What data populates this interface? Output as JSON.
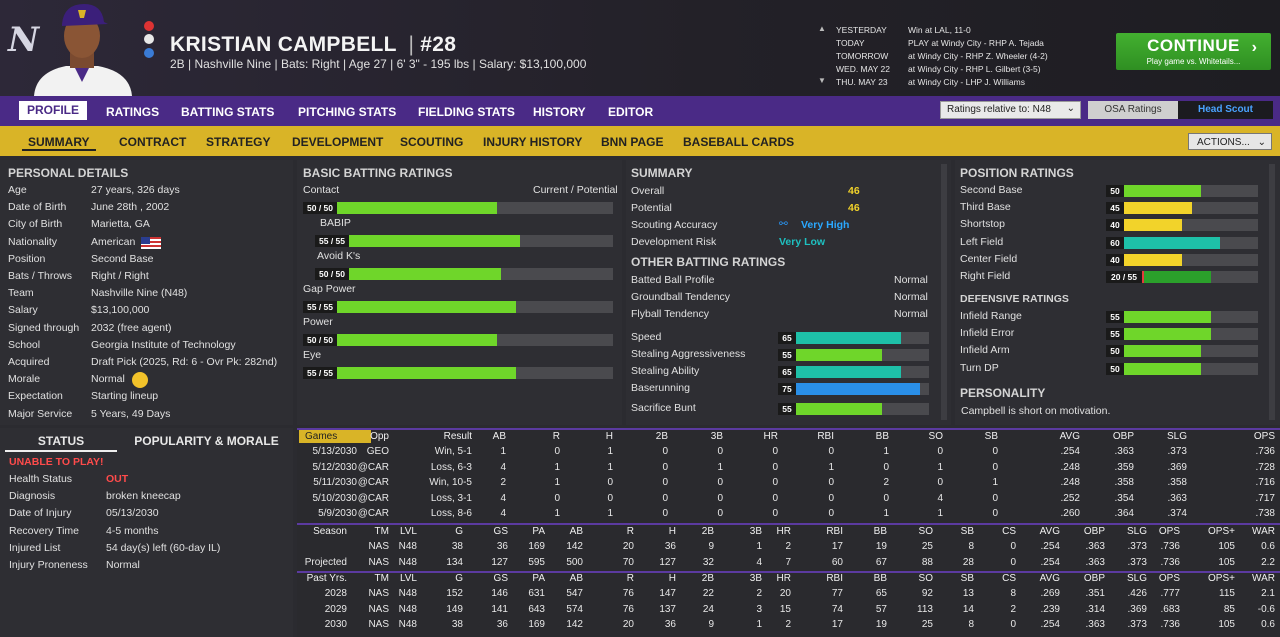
{
  "header": {
    "logo": "N",
    "name": "KRISTIAN CAMPBELL",
    "number_sep": "|",
    "number": "#28",
    "info": "2B | Nashville Nine | Bats: Right | Age 27 | 6' 3\" - 195 lbs | Salary: $13,100,000"
  },
  "schedule": [
    {
      "day": "YESTERDAY",
      "text": "Win at LAL, 11-0"
    },
    {
      "day": "TODAY",
      "text": "PLAY at Windy City - RHP A. Tejada"
    },
    {
      "day": "TOMORROW",
      "text": "at Windy City - RHP Z. Wheeler (4-2)"
    },
    {
      "day": "WED. MAY 22",
      "text": "at Windy City - RHP L. Gilbert (3-5)"
    },
    {
      "day": "THU. MAY 23",
      "text": "at Windy City - LHP J. Williams"
    }
  ],
  "continue": {
    "label": "CONTINUE",
    "sub": "Play game vs. Whitetails..."
  },
  "nav1": [
    "PROFILE",
    "RATINGS",
    "BATTING STATS",
    "PITCHING STATS",
    "FIELDING STATS",
    "HISTORY",
    "EDITOR"
  ],
  "ratings_select": "Ratings relative to: N48",
  "osa": "OSA Ratings",
  "head_scout": "Head Scout",
  "nav2": [
    "SUMMARY",
    "CONTRACT",
    "STRATEGY",
    "DEVELOPMENT",
    "SCOUTING",
    "INJURY HISTORY",
    "BNN PAGE",
    "BASEBALL CARDS"
  ],
  "actions": "ACTIONS...",
  "personal": {
    "title": "PERSONAL DETAILS",
    "rows": [
      [
        "Age",
        "27 years, 326 days"
      ],
      [
        "Date of Birth",
        "June 28th , 2002"
      ],
      [
        "City of Birth",
        "Marietta, GA"
      ],
      [
        "Nationality",
        "American"
      ],
      [
        "Position",
        "Second Base"
      ],
      [
        "Bats / Throws",
        "Right / Right"
      ],
      [
        "Team",
        "Nashville Nine (N48)"
      ],
      [
        "Salary",
        "$13,100,000"
      ],
      [
        "Signed through",
        "2032 (free agent)"
      ],
      [
        "School",
        "Georgia Institute of Technology"
      ],
      [
        "Acquired",
        "Draft Pick (2025, Rd: 6 - Ovr Pk: 282nd)"
      ],
      [
        "Morale",
        "Normal"
      ],
      [
        "Expectation",
        "Starting lineup"
      ],
      [
        "Major Service",
        "5 Years, 49 Days"
      ]
    ]
  },
  "status": {
    "tab1": "STATUS",
    "tab2": "POPULARITY & MORALE",
    "alert": "UNABLE TO PLAY!",
    "rows": [
      [
        "Health Status",
        "OUT"
      ],
      [
        "Diagnosis",
        "broken kneecap"
      ],
      [
        "Date of Injury",
        "05/13/2030"
      ],
      [
        "Recovery Time",
        "4-5 months"
      ],
      [
        "Injured List",
        "54 day(s) left (60-day IL)"
      ],
      [
        "Injury Proneness",
        "Normal"
      ]
    ]
  },
  "batting": {
    "title": "BASIC BATTING RATINGS",
    "cur_pot": "Current / Potential",
    "items": [
      {
        "name": "Contact",
        "label": "50 / 50",
        "cur": 50
      },
      {
        "name": "BABIP",
        "label": "55 / 55",
        "cur": 55
      },
      {
        "name": "Avoid K's",
        "label": "50 / 50",
        "cur": 50
      },
      {
        "name": "Gap Power",
        "label": "55 / 55",
        "cur": 55
      },
      {
        "name": "Power",
        "label": "50 / 50",
        "cur": 50
      },
      {
        "name": "Eye",
        "label": "55 / 55",
        "cur": 55
      }
    ]
  },
  "summary": {
    "title": "SUMMARY",
    "overall_label": "Overall",
    "overall": "46",
    "potential_label": "Potential",
    "potential": "46",
    "sa_label": "Scouting Accuracy",
    "sa": "Very High",
    "dr_label": "Development Risk",
    "dr": "Very Low",
    "other_title": "OTHER BATTING RATINGS",
    "other": [
      [
        "Batted Ball Profile",
        "Normal"
      ],
      [
        "Groundball Tendency",
        "Normal"
      ],
      [
        "Flyball Tendency",
        "Normal"
      ]
    ],
    "speed": [
      {
        "name": "Speed",
        "v": 65
      },
      {
        "name": "Stealing Aggressiveness",
        "v": 55
      },
      {
        "name": "Stealing Ability",
        "v": 65
      },
      {
        "name": "Baserunning",
        "v": 75
      },
      {
        "name": "Sacrifice Bunt",
        "v": 55
      }
    ]
  },
  "position": {
    "title": "POSITION RATINGS",
    "items": [
      {
        "name": "Second Base",
        "label": "50",
        "v": 50,
        "p": 50
      },
      {
        "name": "Third Base",
        "label": "45",
        "v": 45,
        "p": 45
      },
      {
        "name": "Shortstop",
        "label": "40",
        "v": 40,
        "p": 40
      },
      {
        "name": "Left Field",
        "label": "60",
        "v": 60,
        "p": 60
      },
      {
        "name": "Center Field",
        "label": "40",
        "v": 40,
        "p": 40
      },
      {
        "name": "Right Field",
        "label": "20 / 55",
        "v": 20,
        "p": 55
      }
    ],
    "def_title": "DEFENSIVE RATINGS",
    "def": [
      {
        "name": "Infield Range",
        "v": 55
      },
      {
        "name": "Infield Error",
        "v": 55
      },
      {
        "name": "Infield Arm",
        "v": 50
      },
      {
        "name": "Turn DP",
        "v": 50
      }
    ],
    "personality_title": "PERSONALITY",
    "personality": "Campbell is short on motivation."
  },
  "games": {
    "header": [
      "Games",
      "Opp",
      "Result",
      "AB",
      "R",
      "H",
      "2B",
      "3B",
      "HR",
      "RBI",
      "BB",
      "SO",
      "SB",
      "AVG",
      "OBP",
      "SLG",
      "OPS"
    ],
    "rows": [
      [
        "5/13/2030",
        "GEO",
        "Win, 5-1",
        "1",
        "0",
        "1",
        "0",
        "0",
        "0",
        "0",
        "1",
        "0",
        "0",
        ".254",
        ".363",
        ".373",
        ".736"
      ],
      [
        "5/12/2030",
        "@CAR",
        "Loss, 6-3",
        "4",
        "1",
        "1",
        "0",
        "1",
        "0",
        "1",
        "0",
        "1",
        "0",
        ".248",
        ".359",
        ".369",
        ".728"
      ],
      [
        "5/11/2030",
        "@CAR",
        "Win, 10-5",
        "2",
        "1",
        "0",
        "0",
        "0",
        "0",
        "0",
        "2",
        "0",
        "1",
        ".248",
        ".358",
        ".358",
        ".716"
      ],
      [
        "5/10/2030",
        "@CAR",
        "Loss, 3-1",
        "4",
        "0",
        "0",
        "0",
        "0",
        "0",
        "0",
        "0",
        "4",
        "0",
        ".252",
        ".354",
        ".363",
        ".717"
      ],
      [
        "5/9/2030",
        "@CAR",
        "Loss, 8-6",
        "4",
        "1",
        "1",
        "0",
        "0",
        "0",
        "0",
        "1",
        "1",
        "0",
        ".260",
        ".364",
        ".374",
        ".738"
      ]
    ]
  },
  "season": {
    "header": [
      "Season",
      "TM",
      "LVL",
      "G",
      "GS",
      "PA",
      "AB",
      "R",
      "H",
      "2B",
      "3B",
      "HR",
      "RBI",
      "BB",
      "SO",
      "SB",
      "CS",
      "AVG",
      "OBP",
      "SLG",
      "OPS",
      "OPS+",
      "WAR"
    ],
    "rows": [
      [
        "",
        "NAS",
        "N48",
        "38",
        "36",
        "169",
        "142",
        "20",
        "36",
        "9",
        "1",
        "2",
        "17",
        "19",
        "25",
        "8",
        "0",
        ".254",
        ".363",
        ".373",
        ".736",
        "105",
        "0.6"
      ],
      [
        "Projected",
        "NAS",
        "N48",
        "134",
        "127",
        "595",
        "500",
        "70",
        "127",
        "32",
        "4",
        "7",
        "60",
        "67",
        "88",
        "28",
        "0",
        ".254",
        ".363",
        ".373",
        ".736",
        "105",
        "2.2"
      ]
    ]
  },
  "past": {
    "header": [
      "Past Yrs.",
      "TM",
      "LVL",
      "G",
      "GS",
      "PA",
      "AB",
      "R",
      "H",
      "2B",
      "3B",
      "HR",
      "RBI",
      "BB",
      "SO",
      "SB",
      "CS",
      "AVG",
      "OBP",
      "SLG",
      "OPS",
      "OPS+",
      "WAR"
    ],
    "rows": [
      [
        "2028",
        "NAS",
        "N48",
        "152",
        "146",
        "631",
        "547",
        "76",
        "147",
        "22",
        "2",
        "20",
        "77",
        "65",
        "92",
        "13",
        "8",
        ".269",
        ".351",
        ".426",
        ".777",
        "115",
        "2.1"
      ],
      [
        "2029",
        "NAS",
        "N48",
        "149",
        "141",
        "643",
        "574",
        "76",
        "137",
        "24",
        "3",
        "15",
        "74",
        "57",
        "113",
        "14",
        "2",
        ".239",
        ".314",
        ".369",
        ".683",
        "85",
        "-0.6"
      ],
      [
        "2030",
        "NAS",
        "N48",
        "38",
        "36",
        "169",
        "142",
        "20",
        "36",
        "9",
        "1",
        "2",
        "17",
        "19",
        "25",
        "8",
        "0",
        ".254",
        ".363",
        ".373",
        ".736",
        "105",
        "0.6"
      ]
    ]
  },
  "colors": {
    "green": "#6fd62a",
    "yellow": "#f2d32a",
    "teal": "#1ec0a8",
    "blue": "#2a8fe8",
    "red": "#e23b3b",
    "purple": "#4a2a86",
    "gold": "#d9b427"
  }
}
